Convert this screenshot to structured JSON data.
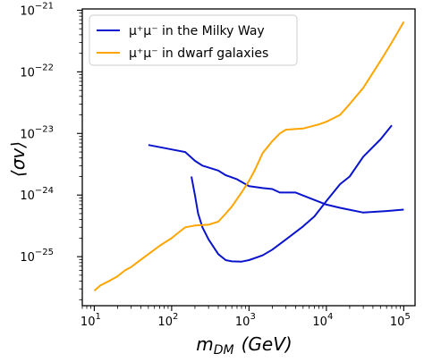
{
  "chart_data": {
    "type": "line",
    "title": "",
    "xlabel": "m_DM (GeV)",
    "ylabel": "⟨σv⟩",
    "x_scale": "log",
    "y_scale": "log",
    "xlim": [
      7,
      140000
    ],
    "ylim": [
      1.6e-26,
      1.05e-21
    ],
    "x_ticks": [
      10,
      100,
      1000,
      10000,
      100000
    ],
    "y_ticks": [
      1e-25,
      1e-24,
      1e-23,
      1e-22,
      1e-21
    ],
    "x_tick_labels": [
      {
        "base": "10",
        "exp": "1"
      },
      {
        "base": "10",
        "exp": "2"
      },
      {
        "base": "10",
        "exp": "3"
      },
      {
        "base": "10",
        "exp": "4"
      },
      {
        "base": "10",
        "exp": "5"
      }
    ],
    "y_tick_labels": [
      {
        "base": "10",
        "exp": "−25"
      },
      {
        "base": "10",
        "exp": "−24"
      },
      {
        "base": "10",
        "exp": "−23"
      },
      {
        "base": "10",
        "exp": "−22"
      },
      {
        "base": "10",
        "exp": "−21"
      }
    ],
    "grid": false,
    "legend_position": "top-left",
    "series": [
      {
        "name": "μ⁺μ⁻ in the Milky Way",
        "color": "#0a14cd",
        "segments": [
          [
            [
              50,
              6.5e-24
            ],
            [
              100,
              5.5e-24
            ],
            [
              150,
              5e-24
            ],
            [
              200,
              3.6e-24
            ],
            [
              250,
              3e-24
            ],
            [
              300,
              2.8e-24
            ],
            [
              400,
              2.5e-24
            ],
            [
              500,
              2.1e-24
            ],
            [
              700,
              1.8e-24
            ],
            [
              1000,
              1.4e-24
            ],
            [
              1500,
              1.3e-24
            ],
            [
              2000,
              1.25e-24
            ],
            [
              2500,
              1.1e-24
            ],
            [
              4000,
              1.1e-24
            ],
            [
              6000,
              9e-25
            ],
            [
              10000,
              7e-25
            ],
            [
              15000,
              6.2e-25
            ],
            [
              30000,
              5.2e-25
            ],
            [
              60000,
              5.5e-25
            ],
            [
              100000,
              5.8e-25
            ]
          ],
          [
            [
              180,
              2e-24
            ],
            [
              200,
              1e-24
            ],
            [
              220,
              5e-25
            ],
            [
              250,
              3e-25
            ],
            [
              300,
              1.9e-25
            ],
            [
              400,
              1.1e-25
            ],
            [
              500,
              8.8e-26
            ],
            [
              600,
              8.4e-26
            ],
            [
              800,
              8.3e-26
            ],
            [
              1000,
              8.8e-26
            ],
            [
              1500,
              1.05e-25
            ],
            [
              2000,
              1.3e-25
            ],
            [
              3000,
              1.9e-25
            ],
            [
              5000,
              3.1e-25
            ],
            [
              7000,
              4.5e-25
            ],
            [
              10000,
              8e-25
            ],
            [
              15000,
              1.5e-24
            ],
            [
              20000,
              2e-24
            ],
            [
              30000,
              4.2e-24
            ],
            [
              50000,
              8e-24
            ],
            [
              70000,
              1.35e-23
            ]
          ]
        ]
      },
      {
        "name": "μ⁺μ⁻ in dwarf galaxies",
        "color": "#ffa500",
        "segments": [
          [
            [
              10,
              2.8e-26
            ],
            [
              12,
              3.4e-26
            ],
            [
              16,
              4.1e-26
            ],
            [
              20,
              4.8e-26
            ],
            [
              25,
              6e-26
            ],
            [
              30,
              6.8e-26
            ],
            [
              40,
              8.9e-26
            ],
            [
              50,
              1.1e-25
            ],
            [
              70,
              1.5e-25
            ],
            [
              100,
              2e-25
            ],
            [
              130,
              2.6e-25
            ],
            [
              150,
              3e-25
            ],
            [
              200,
              3.2e-25
            ],
            [
              300,
              3.3e-25
            ],
            [
              400,
              3.7e-25
            ],
            [
              500,
              5e-25
            ],
            [
              600,
              6.5e-25
            ],
            [
              800,
              1.1e-24
            ],
            [
              1000,
              1.7e-24
            ],
            [
              1200,
              2.6e-24
            ],
            [
              1500,
              4.8e-24
            ],
            [
              2000,
              7.5e-24
            ],
            [
              2500,
              1e-23
            ],
            [
              3000,
              1.15e-23
            ],
            [
              5000,
              1.2e-23
            ],
            [
              8000,
              1.4e-23
            ],
            [
              10000,
              1.55e-23
            ],
            [
              15000,
              2e-23
            ],
            [
              20000,
              3e-23
            ],
            [
              30000,
              5.5e-23
            ],
            [
              50000,
              1.5e-22
            ],
            [
              70000,
              3e-22
            ],
            [
              100000,
              6.5e-22
            ]
          ]
        ]
      }
    ]
  }
}
